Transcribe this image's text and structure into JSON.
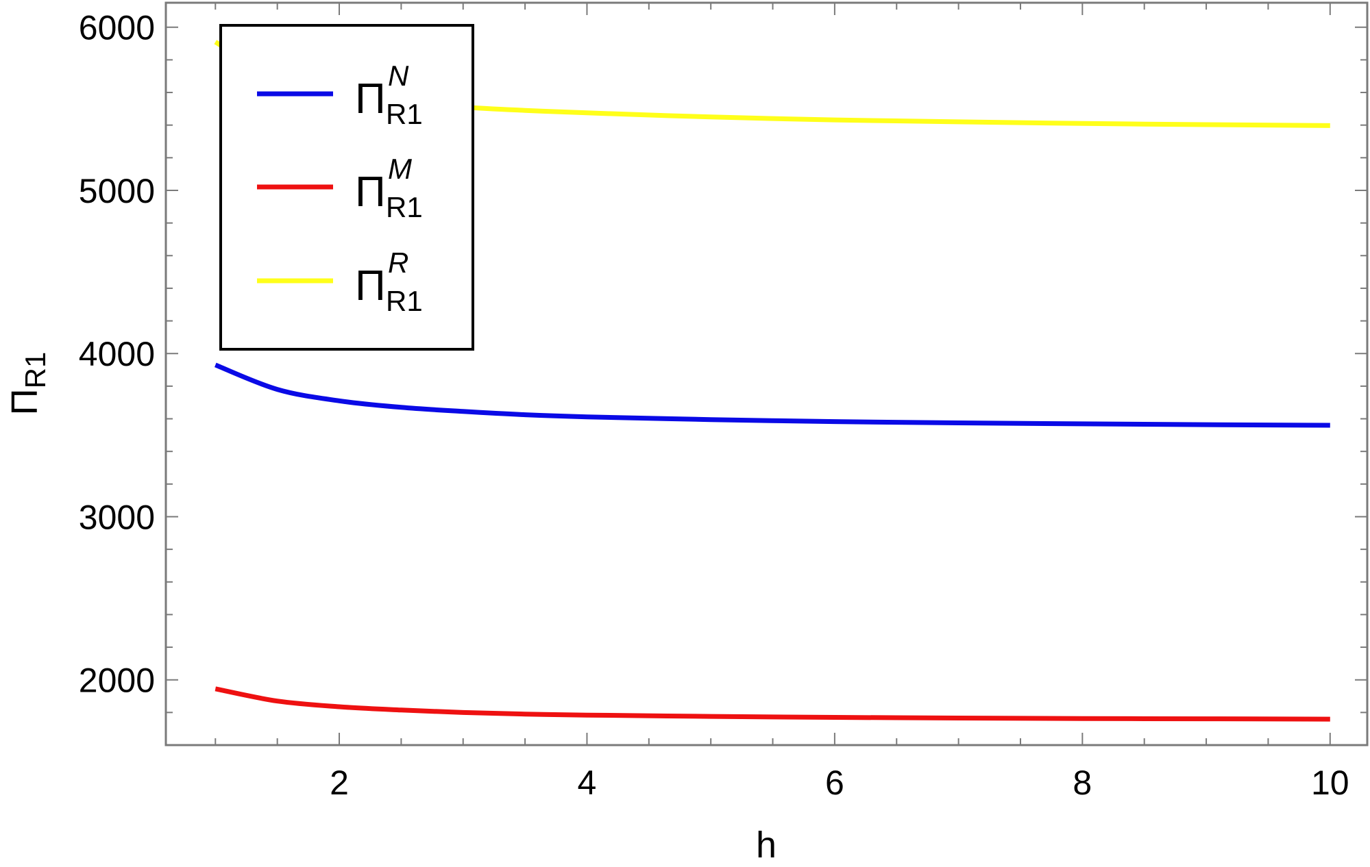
{
  "chart_data": {
    "type": "line",
    "title": "",
    "xlabel": "h",
    "ylabel": {
      "base": "Π",
      "sub": "R1"
    },
    "xlim": [
      0.6,
      10.3
    ],
    "ylim": [
      1600,
      6150
    ],
    "xticks": [
      2,
      4,
      6,
      8,
      10
    ],
    "yticks": [
      2000,
      3000,
      4000,
      5000,
      6000
    ],
    "grid": false,
    "legend_position": "top-left",
    "x": [
      1,
      1.5,
      2,
      2.5,
      3,
      3.5,
      4,
      5,
      6,
      7,
      8,
      9,
      10
    ],
    "series": [
      {
        "key": "N",
        "legend": {
          "base": "Π",
          "sup": "N",
          "sub": "R1"
        },
        "color": "#0a0ae6",
        "values": [
          3930,
          3780,
          3710,
          3670,
          3645,
          3625,
          3612,
          3595,
          3583,
          3575,
          3569,
          3564,
          3560
        ]
      },
      {
        "key": "M",
        "legend": {
          "base": "Π",
          "sup": "M",
          "sub": "R1"
        },
        "color": "#ee1111",
        "values": [
          1945,
          1870,
          1835,
          1815,
          1800,
          1790,
          1784,
          1776,
          1770,
          1766,
          1763,
          1761,
          1759
        ]
      },
      {
        "key": "R",
        "legend": {
          "base": "Π",
          "sup": "R",
          "sub": "R1"
        },
        "color": "#ffff1a",
        "values": [
          5910,
          5680,
          5590,
          5540,
          5510,
          5490,
          5475,
          5450,
          5432,
          5420,
          5410,
          5403,
          5397
        ]
      }
    ]
  }
}
